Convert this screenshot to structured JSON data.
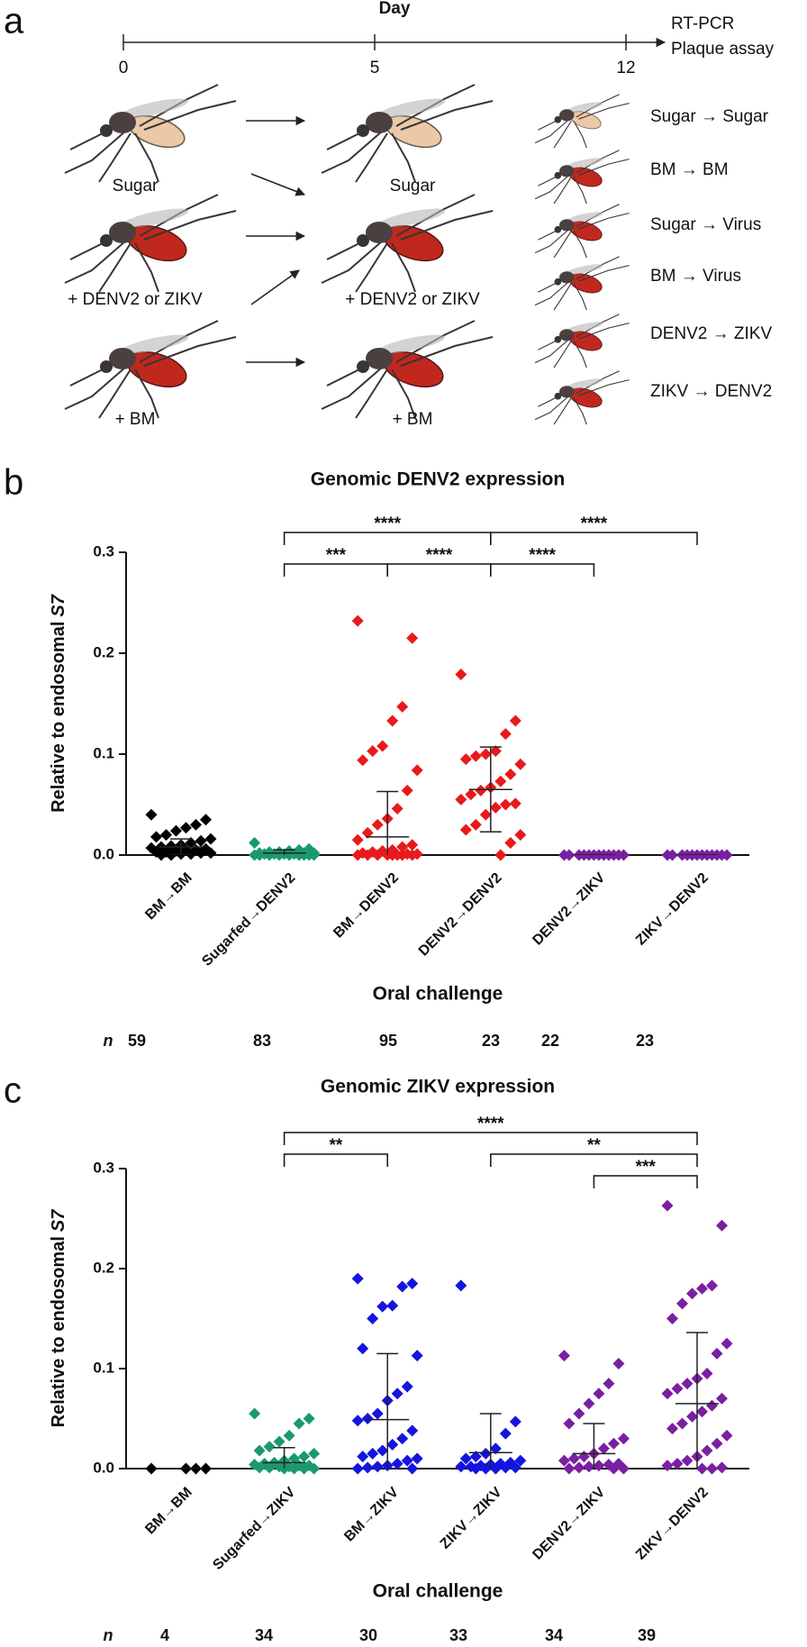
{
  "panel_a": {
    "panel_label": "a",
    "axis_title": "Day",
    "ticks": [
      0,
      5,
      12
    ],
    "endpoint": [
      "RT-PCR",
      "Plaque assay"
    ],
    "diet_labels": [
      "Sugar",
      "+ DENV2 or ZIKV",
      "+ BM"
    ],
    "groups": [
      "Sugar → Sugar",
      "BM → BM",
      "Sugar → Virus",
      "BM → Virus",
      "DENV2 → ZIKV",
      "ZIKV → DENV2"
    ]
  },
  "chart_data": [
    {
      "type": "strip",
      "panel_label": "b",
      "title": "Genomic DENV2 expression",
      "ylabel": "Relative to endosomal",
      "ylabel_italic": "S7",
      "xlabel": "Oral challenge",
      "ylim": [
        0,
        0.3
      ],
      "yticks": [
        {
          "value": 0,
          "label": "0.0"
        },
        0.1,
        0.2,
        0.3
      ],
      "n_label": "n",
      "n": [
        59,
        83,
        95,
        23,
        22,
        23
      ],
      "groups": [
        {
          "name": "BM→BM",
          "color": "#000000",
          "mean": 0.008,
          "sd": 0.008,
          "values": [
            0.04,
            0.035,
            0.03,
            0.027,
            0.024,
            0.02,
            0.018,
            0.016,
            0.014,
            0.012,
            0.01,
            0.009,
            0.008,
            0.007,
            0.006,
            0.005,
            0.005,
            0.004,
            0.003,
            0.003,
            0.002,
            0.002,
            0.001,
            0.001,
            0,
            0
          ]
        },
        {
          "name": "Sugarfed→DENV2",
          "color": "#1a9a6c",
          "mean": 0.002,
          "sd": 0.003,
          "values": [
            0.012,
            0.006,
            0.005,
            0.004,
            0.003,
            0.003,
            0.002,
            0.002,
            0.002,
            0.001,
            0.001,
            0.001,
            0.001,
            0,
            0,
            0,
            0,
            0,
            0,
            0,
            0,
            0
          ]
        },
        {
          "name": "BM→DENV2",
          "color": "#e8191c",
          "mean": 0.018,
          "sd": 0.045,
          "values": [
            0.232,
            0.215,
            0.147,
            0.133,
            0.108,
            0.103,
            0.094,
            0.084,
            0.064,
            0.046,
            0.036,
            0.03,
            0.022,
            0.015,
            0.01,
            0.008,
            0.005,
            0.004,
            0.003,
            0.002,
            0.001,
            0.001,
            0,
            0,
            0,
            0,
            0,
            0,
            0,
            0
          ]
        },
        {
          "name": "DENV2→DENV2",
          "color": "#e8191c",
          "mean": 0.065,
          "sd": 0.042,
          "values": [
            0.179,
            0.133,
            0.12,
            0.103,
            0.1,
            0.098,
            0.095,
            0.09,
            0.08,
            0.073,
            0.067,
            0.064,
            0.06,
            0.055,
            0.051,
            0.05,
            0.047,
            0.04,
            0.03,
            0.025,
            0.02,
            0.012,
            0
          ]
        },
        {
          "name": "DENV2→ZIKV",
          "color": "#7a1fa2",
          "mean": 0,
          "sd": 0,
          "values": [
            0,
            0,
            0,
            0,
            0,
            0,
            0,
            0,
            0,
            0,
            0,
            0
          ]
        },
        {
          "name": "ZIKV→DENV2",
          "color": "#7a1fa2",
          "mean": 0,
          "sd": 0,
          "values": [
            0,
            0,
            0,
            0,
            0,
            0,
            0,
            0,
            0,
            0,
            0,
            0
          ]
        }
      ],
      "comparisons": [
        {
          "from": 1,
          "to": 2,
          "level": 0,
          "label": "***"
        },
        {
          "from": 2,
          "to": 3,
          "level": 0,
          "label": "****"
        },
        {
          "from": 3,
          "to": 4,
          "level": 0,
          "label": "****"
        },
        {
          "from": 1,
          "to": 3,
          "level": 1,
          "label": "****"
        },
        {
          "from": 3,
          "to": 5,
          "level": 1,
          "label": "****"
        }
      ]
    },
    {
      "type": "strip",
      "panel_label": "c",
      "title": "Genomic ZIKV expression",
      "ylabel": "Relative to endosomal",
      "ylabel_italic": "S7",
      "xlabel": "Oral challenge",
      "ylim": [
        0,
        0.3
      ],
      "yticks": [
        {
          "value": 0,
          "label": "0.0"
        },
        0.1,
        0.2,
        0.3
      ],
      "n_label": "n",
      "n": [
        4,
        34,
        30,
        33,
        34,
        39
      ],
      "groups": [
        {
          "name": "BM→BM",
          "color": "#000000",
          "mean": 0,
          "sd": 0,
          "values": [
            0,
            0,
            0,
            0
          ]
        },
        {
          "name": "Sugarfed→ZIKV",
          "color": "#1a9a6c",
          "mean": 0.006,
          "sd": 0.015,
          "values": [
            0.055,
            0.05,
            0.045,
            0.033,
            0.027,
            0.022,
            0.018,
            0.015,
            0.012,
            0.01,
            0.008,
            0.006,
            0.005,
            0.004,
            0.003,
            0.003,
            0.002,
            0.002,
            0.001,
            0.001,
            0,
            0,
            0,
            0
          ]
        },
        {
          "name": "BM→ZIKV",
          "color": "#1414e0",
          "mean": 0.049,
          "sd": 0.066,
          "values": [
            0.19,
            0.185,
            0.182,
            0.163,
            0.162,
            0.15,
            0.12,
            0.113,
            0.082,
            0.075,
            0.068,
            0.055,
            0.05,
            0.048,
            0.038,
            0.03,
            0.024,
            0.018,
            0.015,
            0.012,
            0.01,
            0.008,
            0.005,
            0.003,
            0.002,
            0.001,
            0,
            0
          ]
        },
        {
          "name": "ZIKV→ZIKV",
          "color": "#1414e0",
          "mean": 0.016,
          "sd": 0.039,
          "values": [
            0.183,
            0.047,
            0.035,
            0.02,
            0.015,
            0.012,
            0.01,
            0.008,
            0.006,
            0.005,
            0.004,
            0.003,
            0.002,
            0.002,
            0.001,
            0.001,
            0,
            0,
            0
          ]
        },
        {
          "name": "DENV2→ZIKV",
          "color": "#7a1fa2",
          "mean": 0.015,
          "sd": 0.03,
          "values": [
            0.113,
            0.105,
            0.085,
            0.075,
            0.065,
            0.055,
            0.045,
            0.03,
            0.025,
            0.02,
            0.015,
            0.012,
            0.01,
            0.008,
            0.005,
            0.004,
            0.003,
            0.002,
            0.001,
            0,
            0,
            0
          ]
        },
        {
          "name": "ZIKV→DENV2",
          "color": "#7a1fa2",
          "mean": 0.065,
          "sd": 0.071,
          "values": [
            0.263,
            0.243,
            0.183,
            0.18,
            0.175,
            0.165,
            0.15,
            0.125,
            0.115,
            0.095,
            0.09,
            0.085,
            0.08,
            0.075,
            0.07,
            0.063,
            0.057,
            0.052,
            0.045,
            0.04,
            0.033,
            0.025,
            0.018,
            0.012,
            0.008,
            0.005,
            0.003,
            0.001,
            0,
            0
          ]
        }
      ],
      "comparisons": [
        {
          "from": 4,
          "to": 5,
          "level": 0,
          "label": "***"
        },
        {
          "from": 1,
          "to": 2,
          "level": 1,
          "label": "**"
        },
        {
          "from": 3,
          "to": 5,
          "level": 1,
          "label": "**"
        },
        {
          "from": 1,
          "to": 5,
          "level": 2,
          "label": "****"
        }
      ]
    }
  ]
}
